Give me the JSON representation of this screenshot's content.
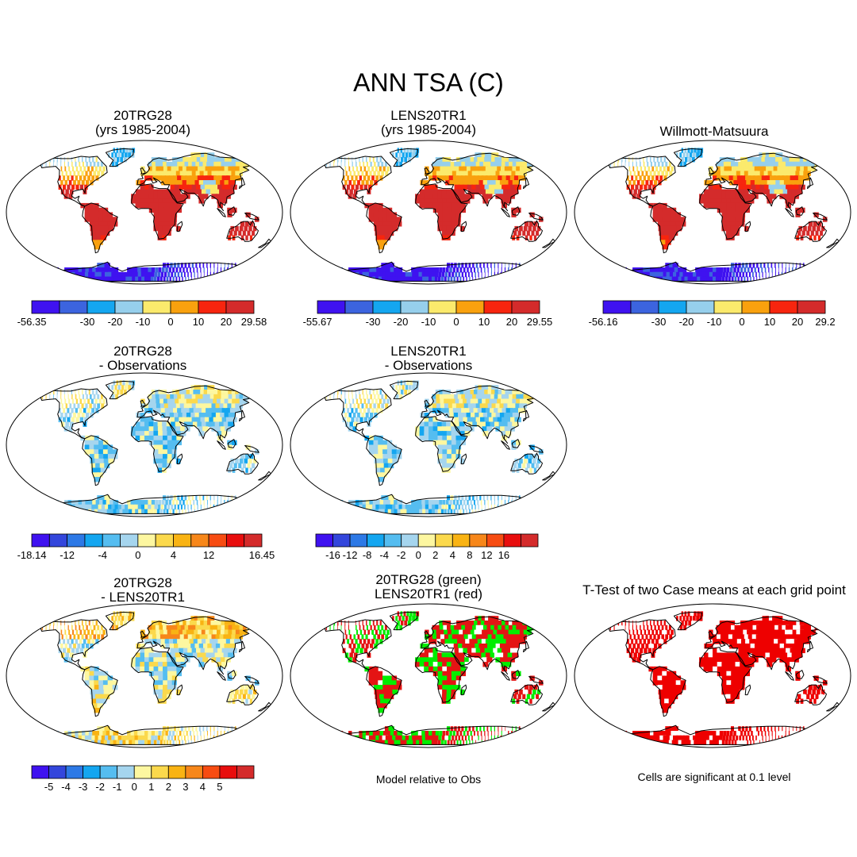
{
  "figure": {
    "title": "ANN TSA (C)"
  },
  "panels": [
    {
      "id": "p1",
      "title1": "20TRG28",
      "title2": "(yrs 1985-2004)",
      "kind": "mean"
    },
    {
      "id": "p2",
      "title1": "LENS20TR1",
      "title2": "(yrs 1985-2004)",
      "kind": "mean"
    },
    {
      "id": "p3",
      "title1": "Willmott-Matsuura",
      "title2": "",
      "kind": "mean"
    },
    {
      "id": "p4",
      "title1": "20TRG28",
      "title2": "- Observations",
      "kind": "diff"
    },
    {
      "id": "p5",
      "title1": "LENS20TR1",
      "title2": "- Observations",
      "kind": "diff"
    },
    {
      "id": "p6",
      "title1": "20TRG28",
      "title2": "- LENS20TR1",
      "kind": "diff2"
    },
    {
      "id": "p7",
      "title1": "20TRG28 (green)",
      "title2": "LENS20TR1 (red)",
      "kind": "compare",
      "note": "Model relative to Obs"
    },
    {
      "id": "p8",
      "title1": "T-Test of two Case means at each grid point",
      "title2": "",
      "kind": "ttest",
      "note": "Cells are significant at 0.1 level"
    }
  ],
  "chart_data": [
    {
      "type": "heatmap",
      "title": "20TRG28 (yrs 1985-2004)",
      "variable": "TSA",
      "units": "C",
      "colorbar": {
        "colors": [
          "#3f12f0",
          "#3c64df",
          "#14a6f0",
          "#96cfec",
          "#fbea6c",
          "#f9a10e",
          "#f7250e",
          "#d42b2b"
        ],
        "tick_labels": [
          "-56.35",
          "-30",
          "-20",
          "-10",
          "0",
          "10",
          "20",
          "29.58"
        ],
        "min": -56.35,
        "max": 29.58
      }
    },
    {
      "type": "heatmap",
      "title": "LENS20TR1 (yrs 1985-2004)",
      "variable": "TSA",
      "units": "C",
      "colorbar": {
        "colors": [
          "#3f12f0",
          "#3c64df",
          "#14a6f0",
          "#96cfec",
          "#fbea6c",
          "#f9a10e",
          "#f7250e",
          "#d42b2b"
        ],
        "tick_labels": [
          "-55.67",
          "-30",
          "-20",
          "-10",
          "0",
          "10",
          "20",
          "29.55"
        ],
        "min": -55.67,
        "max": 29.55
      }
    },
    {
      "type": "heatmap",
      "title": "Willmott-Matsuura",
      "variable": "TSA",
      "units": "C",
      "colorbar": {
        "colors": [
          "#3f12f0",
          "#3c64df",
          "#14a6f0",
          "#96cfec",
          "#fbea6c",
          "#f9a10e",
          "#f7250e",
          "#d42b2b"
        ],
        "tick_labels": [
          "-56.16",
          "-30",
          "-20",
          "-10",
          "0",
          "10",
          "20",
          "29.2"
        ],
        "min": -56.16,
        "max": 29.2
      }
    },
    {
      "type": "heatmap",
      "title": "20TRG28 - Observations",
      "variable": "TSA",
      "units": "C",
      "colorbar": {
        "colors": [
          "#3f12f0",
          "#3346dc",
          "#2d79e6",
          "#14a6f0",
          "#55bdf0",
          "#a5d5ee",
          "#fdf7a0",
          "#fbd94c",
          "#f9b313",
          "#f7871a",
          "#f74c12",
          "#e80e0e",
          "#d42b2b"
        ],
        "tick_labels": [
          "-18.14",
          "-12",
          "-4",
          "0",
          "4",
          "12",
          "16.45"
        ],
        "min": -18.14,
        "max": 16.45
      }
    },
    {
      "type": "heatmap",
      "title": "LENS20TR1 - Observations",
      "variable": "TSA",
      "units": "C",
      "colorbar": {
        "colors": [
          "#3f12f0",
          "#3346dc",
          "#2d79e6",
          "#14a6f0",
          "#55bdf0",
          "#a5d5ee",
          "#fdf7a0",
          "#fbd94c",
          "#f9b313",
          "#f7871a",
          "#f74c12",
          "#e80e0e",
          "#d42b2b"
        ],
        "tick_labels": [
          "-16",
          "-12",
          "-8",
          "-4",
          "-2",
          "0",
          "2",
          "4",
          "8",
          "12",
          "16"
        ]
      }
    },
    {
      "type": "heatmap",
      "title": "20TRG28 - LENS20TR1",
      "variable": "TSA",
      "units": "C",
      "colorbar": {
        "colors": [
          "#3f12f0",
          "#3346dc",
          "#2d79e6",
          "#14a6f0",
          "#55bdf0",
          "#a5d5ee",
          "#fdf7a0",
          "#fbd94c",
          "#f9b313",
          "#f7871a",
          "#f74c12",
          "#e80e0e",
          "#d42b2b"
        ],
        "tick_labels": [
          "-5",
          "-4",
          "-3",
          "-2",
          "-1",
          "0",
          "1",
          "2",
          "3",
          "4",
          "5"
        ]
      }
    },
    {
      "type": "heatmap",
      "title": "20TRG28 (green) LENS20TR1 (red)",
      "legend": [
        "20TRG28 (green)",
        "LENS20TR1 (red)"
      ],
      "note": "Model relative to Obs"
    },
    {
      "type": "heatmap",
      "title": "T-Test of two Case means at each grid point",
      "note": "Cells are significant at 0.1 level"
    }
  ]
}
